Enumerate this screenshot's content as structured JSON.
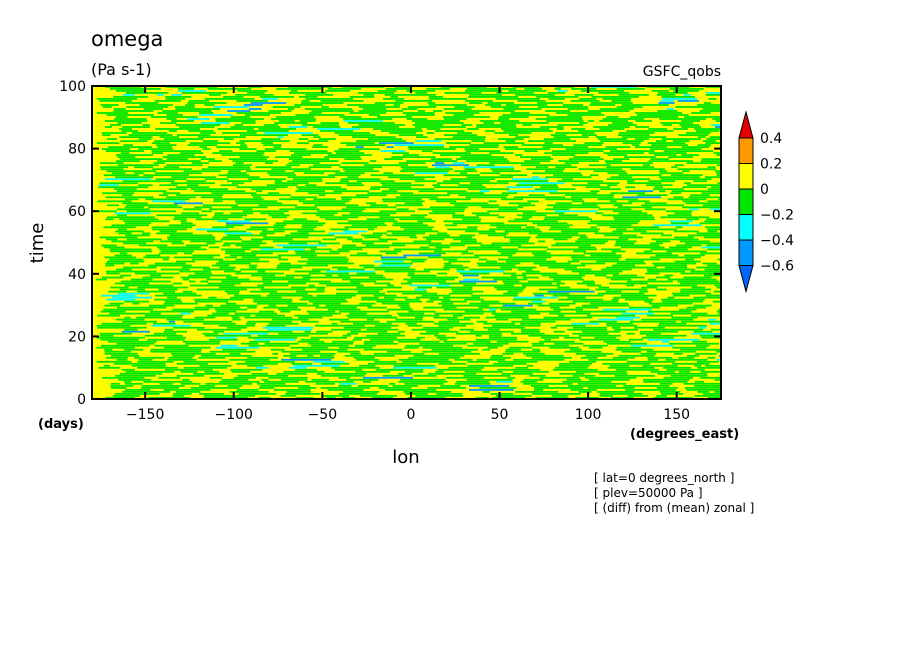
{
  "chart_data": {
    "type": "heatmap",
    "title": "omega",
    "units": "(Pa s-1)",
    "source": "GSFC_qobs",
    "xlabel": "lon",
    "ylabel": "time",
    "xunits": "(degrees_east)",
    "yunits": "(days)",
    "xlim": [
      -180,
      175
    ],
    "ylim": [
      0,
      100
    ],
    "xticks": [
      -150,
      -100,
      -50,
      0,
      50,
      100,
      150
    ],
    "yticks": [
      0,
      20,
      40,
      60,
      80,
      100
    ],
    "annotations": [
      "[ lat=0 degrees_north ]",
      "[ plev=50000 Pa ]",
      "[ (diff) from (mean) zonal ]"
    ],
    "colorbar": {
      "levels": [
        -0.6,
        -0.4,
        -0.2,
        0,
        0.2,
        0.4
      ],
      "labels": [
        "0.4",
        "0.2",
        "0",
        "−0.2",
        "−0.4",
        "−0.6"
      ],
      "colors_top_to_bottom": [
        "#e60000",
        "#ff9900",
        "#ffff00",
        "#00e600",
        "#00ffff",
        "#0099ff",
        "#0066ff"
      ]
    },
    "field": {
      "background_color": "#ffff00",
      "green_color": "#00e600",
      "cyan_color": "#00ffff",
      "blue_color": "#0099ff",
      "dark_blue_color": "#0066ff",
      "description_pattern": "eastward-propagating diagonal streaks, dominated by 0 to 0.2 values with negative (green/cyan/blue) anomalies"
    }
  }
}
